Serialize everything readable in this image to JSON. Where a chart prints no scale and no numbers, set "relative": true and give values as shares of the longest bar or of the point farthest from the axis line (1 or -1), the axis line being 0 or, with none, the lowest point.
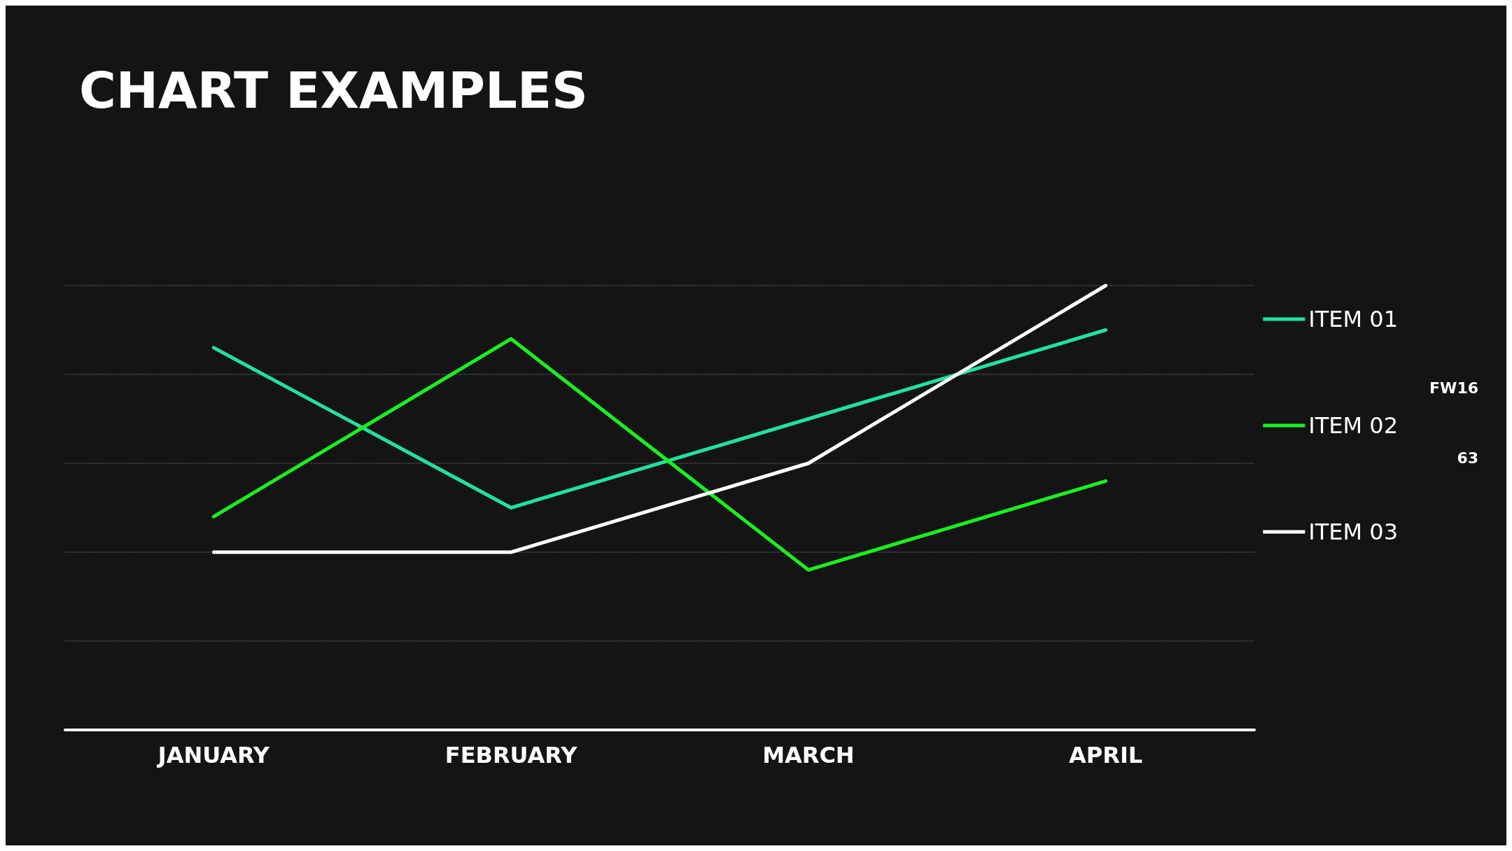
{
  "chart_data": {
    "type": "line",
    "title": "CHART EXAMPLES",
    "categories": [
      "JANUARY",
      "FEBRUARY",
      "MARCH",
      "APRIL"
    ],
    "relative": true,
    "grid": "y",
    "legend": "right",
    "marker": "none",
    "line_style": "solid",
    "series": [
      {
        "name": "ITEM 01",
        "color": "#1fe3a0",
        "values": [
          0.86,
          0.5,
          0.7,
          0.9
        ]
      },
      {
        "name": "ITEM 02",
        "color": "#19f01e",
        "values": [
          0.48,
          0.88,
          0.36,
          0.56
        ]
      },
      {
        "name": "ITEM 03",
        "color": "#ffffff",
        "values": [
          0.4,
          0.4,
          0.6,
          1
        ]
      }
    ],
    "annotations": [
      "FW16",
      "63"
    ]
  }
}
